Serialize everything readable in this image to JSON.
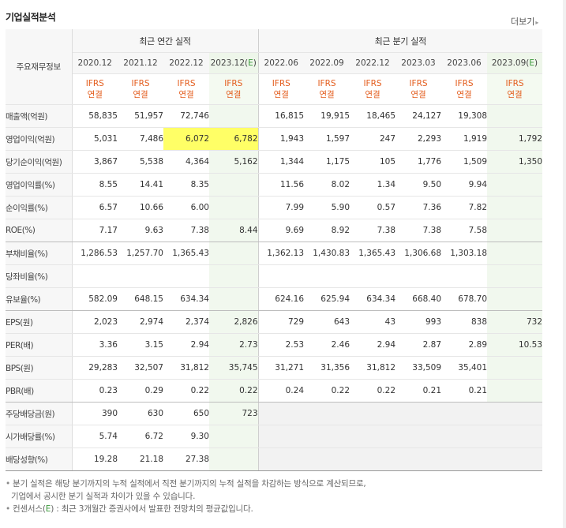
{
  "title": "기업실적분석",
  "more_label": "더보기",
  "header": {
    "label": "주요재무정보",
    "annual_group": "최근 연간 실적",
    "quarterly_group": "최근 분기 실적",
    "annual_periods": [
      "2020.12",
      "2021.12",
      "2022.12",
      "2023.12(E)"
    ],
    "quarterly_periods": [
      "2022.06",
      "2022.09",
      "2022.12",
      "2023.03",
      "2023.06",
      "2023.09(E)"
    ],
    "ifrs_line1": "IFRS",
    "ifrs_line2": "연결"
  },
  "rows": [
    {
      "label": "매출액(억원)",
      "values": [
        "58,835",
        "51,957",
        "72,746",
        "",
        "16,815",
        "19,915",
        "18,465",
        "24,127",
        "19,308",
        ""
      ]
    },
    {
      "label": "영업이익(억원)",
      "values": [
        "5,031",
        "7,486",
        "6,072",
        "6,782",
        "1,943",
        "1,597",
        "247",
        "2,293",
        "1,919",
        "1,792"
      ]
    },
    {
      "label": "당기순이익(억원)",
      "values": [
        "3,867",
        "5,538",
        "4,364",
        "5,162",
        "1,344",
        "1,175",
        "105",
        "1,776",
        "1,509",
        "1,350"
      ]
    },
    {
      "label": "영업이익률(%)",
      "values": [
        "8.55",
        "14.41",
        "8.35",
        "",
        "11.56",
        "8.02",
        "1.34",
        "9.50",
        "9.94",
        ""
      ]
    },
    {
      "label": "순이익률(%)",
      "values": [
        "6.57",
        "10.66",
        "6.00",
        "",
        "7.99",
        "5.90",
        "0.57",
        "7.36",
        "7.82",
        ""
      ]
    },
    {
      "label": "ROE(%)",
      "values": [
        "7.17",
        "9.63",
        "7.38",
        "8.44",
        "9.69",
        "8.92",
        "7.38",
        "7.38",
        "7.58",
        ""
      ]
    },
    {
      "label": "부채비율(%)",
      "values": [
        "1,286.53",
        "1,257.70",
        "1,365.43",
        "",
        "1,362.13",
        "1,430.83",
        "1,365.43",
        "1,306.68",
        "1,303.18",
        ""
      ]
    },
    {
      "label": "당좌비율(%)",
      "values": [
        "",
        "",
        "",
        "",
        "",
        "",
        "",
        "",
        "",
        ""
      ]
    },
    {
      "label": "유보율(%)",
      "values": [
        "582.09",
        "648.15",
        "634.34",
        "",
        "624.16",
        "625.94",
        "634.34",
        "668.40",
        "678.70",
        ""
      ]
    },
    {
      "label": "EPS(원)",
      "values": [
        "2,023",
        "2,974",
        "2,374",
        "2,826",
        "729",
        "643",
        "43",
        "993",
        "838",
        "732"
      ]
    },
    {
      "label": "PER(배)",
      "values": [
        "3.36",
        "3.15",
        "2.94",
        "2.73",
        "2.53",
        "2.46",
        "2.94",
        "2.87",
        "2.89",
        "10.53"
      ]
    },
    {
      "label": "BPS(원)",
      "values": [
        "29,283",
        "32,507",
        "31,812",
        "35,745",
        "31,271",
        "31,356",
        "31,812",
        "33,509",
        "35,401",
        ""
      ]
    },
    {
      "label": "PBR(배)",
      "values": [
        "0.23",
        "0.29",
        "0.22",
        "0.22",
        "0.24",
        "0.22",
        "0.22",
        "0.21",
        "0.21",
        ""
      ]
    },
    {
      "label": "주당배당금(원)",
      "values": [
        "390",
        "630",
        "650",
        "723",
        "",
        "",
        "",
        "",
        "",
        ""
      ]
    },
    {
      "label": "시가배당률(%)",
      "values": [
        "5.74",
        "6.72",
        "9.30",
        "",
        "",
        "",
        "",
        "",
        "",
        ""
      ]
    },
    {
      "label": "배당성향(%)",
      "values": [
        "19.28",
        "21.18",
        "27.38",
        "",
        "",
        "",
        "",
        "",
        "",
        ""
      ]
    }
  ],
  "notes": {
    "line1": "분기 실적은 해당 분기까지의 누적 실적에서 직전 분기까지의 누적 실적을 차감하는 방식으로 계산되므로,",
    "line2": "기업에서 공시한 분기 실적과 차이가 있을 수 있습니다.",
    "line3_pre": "컨센서스(",
    "line3_e": "E",
    "line3_post": ") : 최근 3개월간 증권사에서 발표한 전망치의 평균값입니다."
  },
  "colors": {
    "ifrs": "#e35c1c",
    "estimate_bg": "#f1f8ee",
    "highlight": "#ffff66",
    "estimate_mark": "#3b9a3b"
  }
}
